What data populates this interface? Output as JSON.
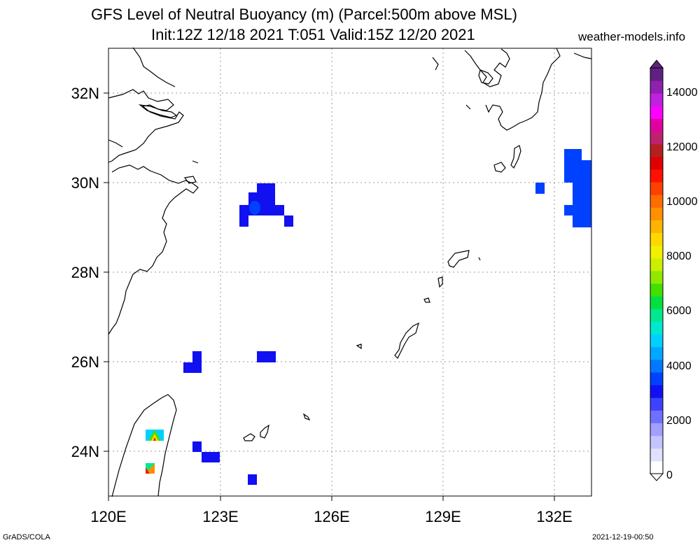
{
  "header": {
    "title_line1": "GFS Level of Neutral Buoyancy (m) (Parcel:500m above MSL)",
    "title_line2": "Init:12Z 12/18 2021 T:051 Valid:15Z 12/20 2021",
    "site": "weather-models.info"
  },
  "axes": {
    "lat_labels": [
      "32N",
      "30N",
      "28N",
      "26N",
      "24N"
    ],
    "lon_labels": [
      "120E",
      "123E",
      "126E",
      "129E",
      "132E"
    ]
  },
  "colorbar": {
    "ticks": [
      "0",
      "2000",
      "4000",
      "6000",
      "8000",
      "10000",
      "12000",
      "14000"
    ],
    "colors": [
      "#ffffff",
      "#e0e0ff",
      "#c4c4ff",
      "#a0a0ff",
      "#7070ff",
      "#4040ff",
      "#1010f0",
      "#0040ff",
      "#0078ff",
      "#00a8ff",
      "#00d0ff",
      "#00e8d0",
      "#00e890",
      "#00e040",
      "#40e000",
      "#90e800",
      "#c8f000",
      "#f0f000",
      "#ffd800",
      "#ffb400",
      "#ff9000",
      "#ff6c00",
      "#ff4000",
      "#ff1000",
      "#e00000",
      "#b42020",
      "#c02070",
      "#e000a0",
      "#ff00ff",
      "#c020e0",
      "#9020b0",
      "#602080"
    ]
  },
  "footer": {
    "left": "GrADS/COLA",
    "right": "2021-12-19-00:50"
  }
}
